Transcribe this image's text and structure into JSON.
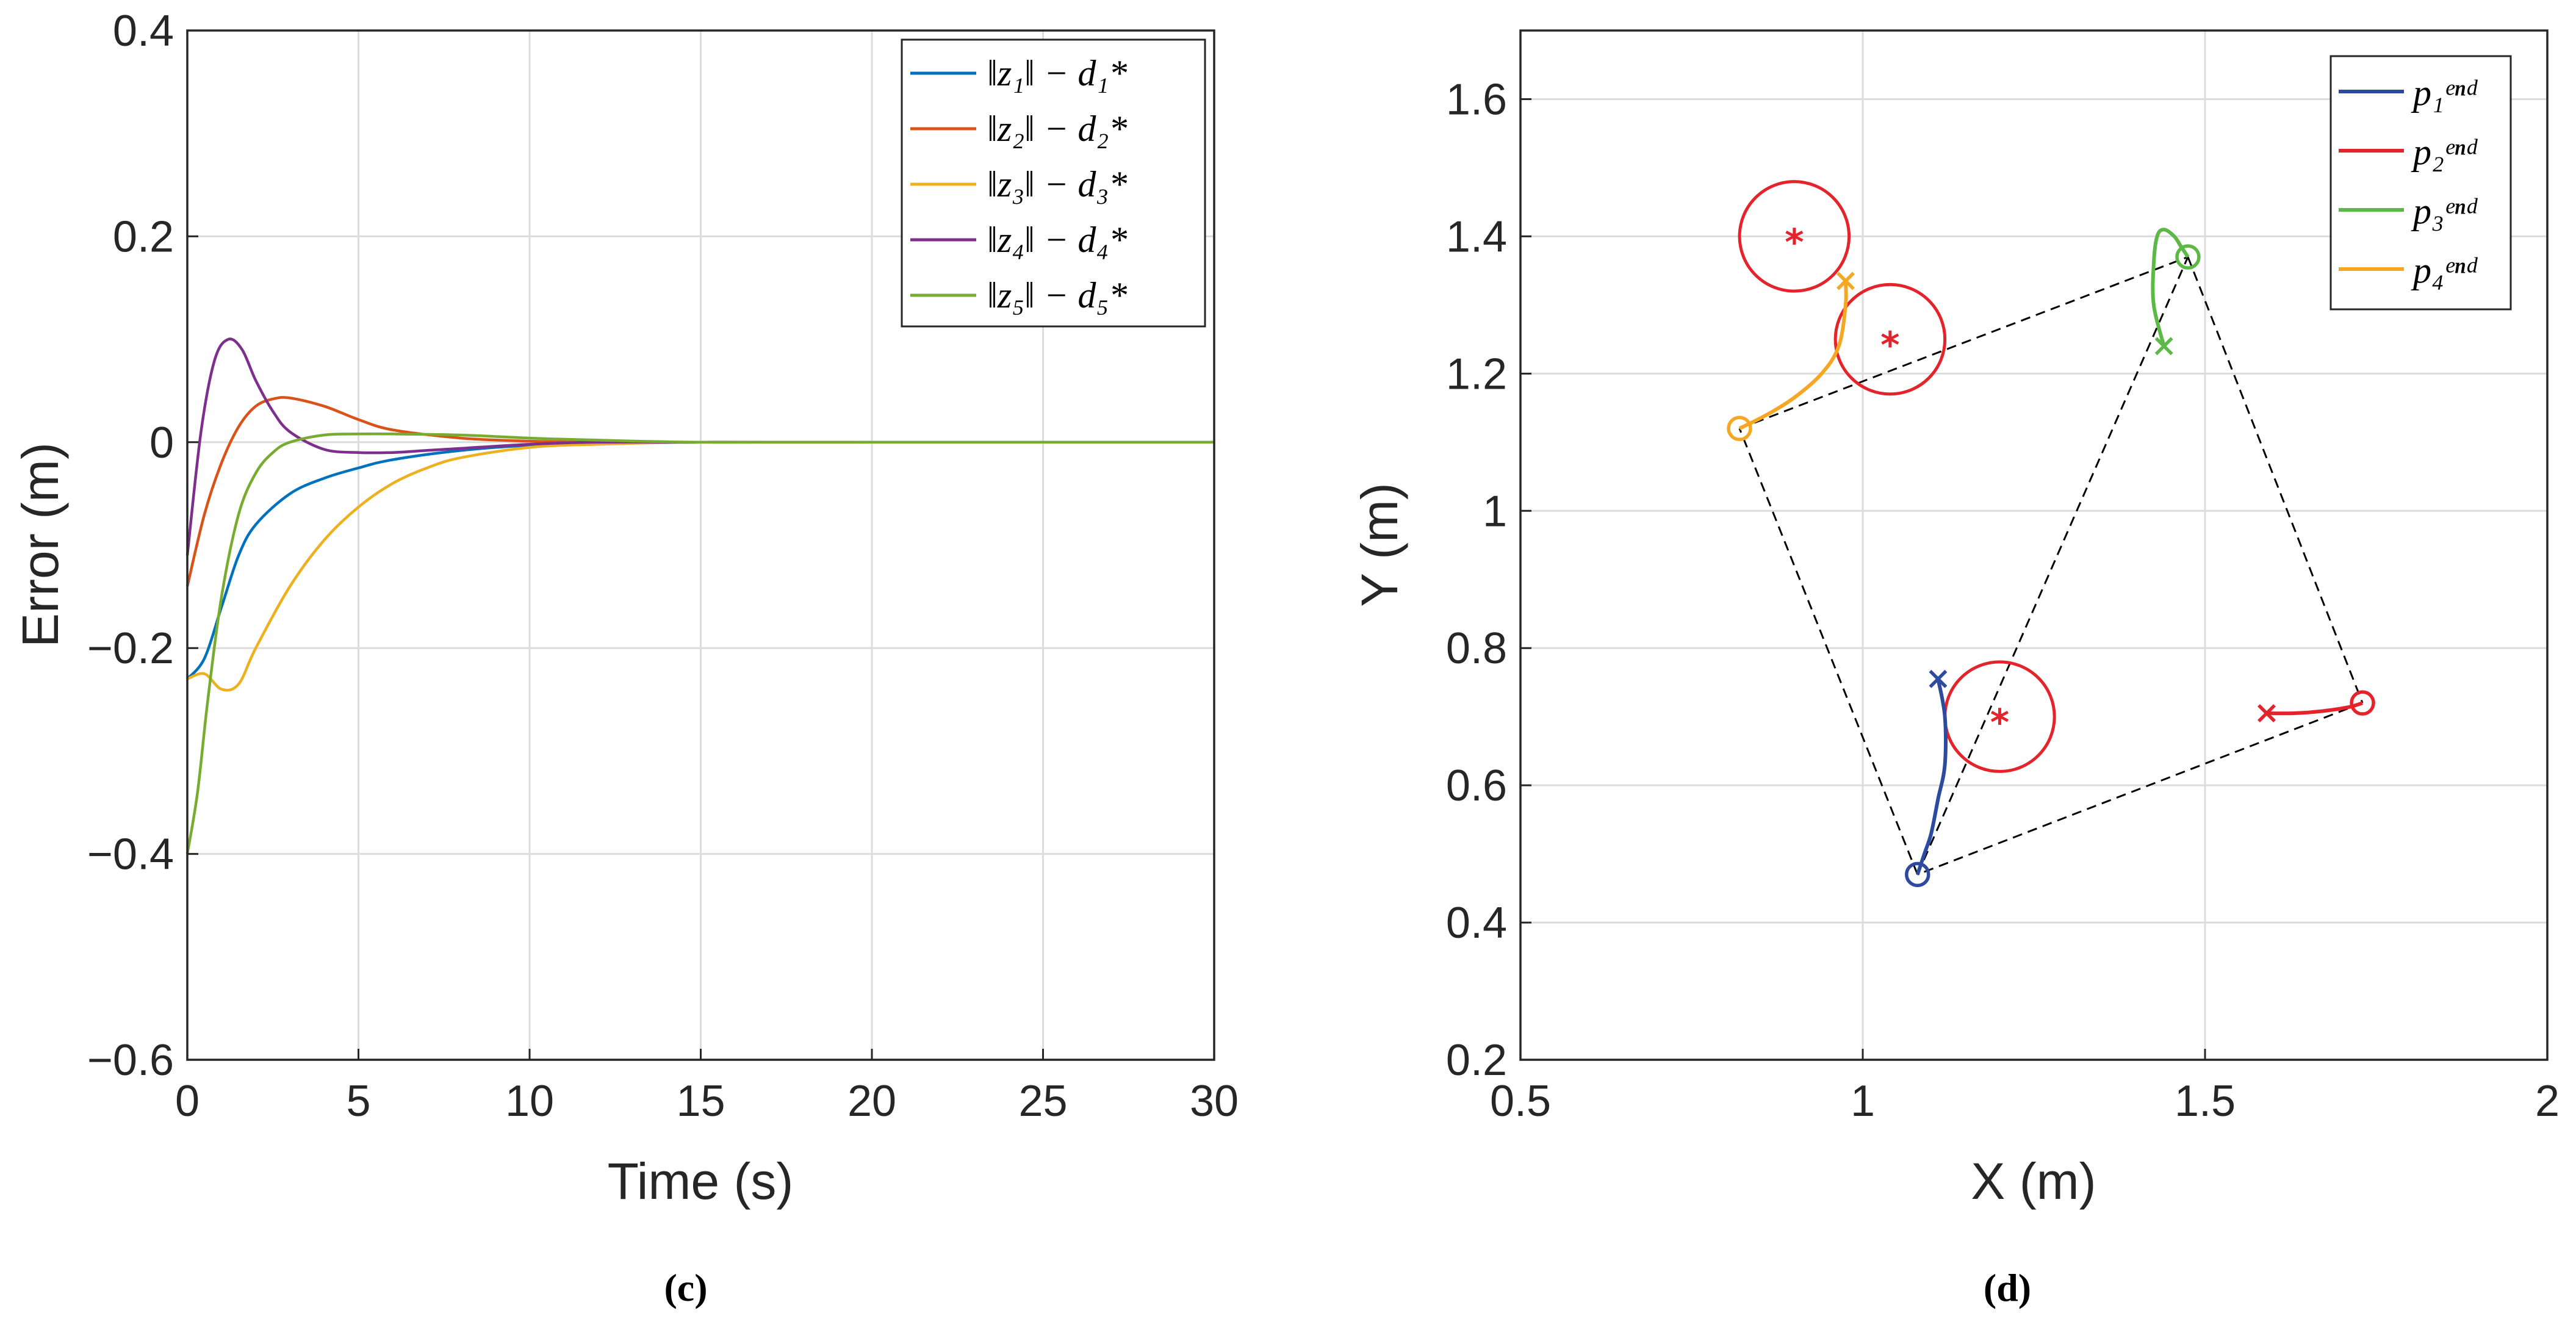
{
  "chart_data": [
    {
      "type": "line",
      "panel_label": "(c)",
      "xlabel": "Time (s)",
      "ylabel": "Error (m)",
      "xlim": [
        0,
        30
      ],
      "ylim": [
        -0.6,
        0.4
      ],
      "xticks": [
        "0",
        "5",
        "10",
        "15",
        "20",
        "25",
        "30"
      ],
      "yticks": [
        "−0.6",
        "−0.4",
        "−0.2",
        "0",
        "0.2",
        "0.4"
      ],
      "grid": true,
      "legend_position": "top-right",
      "series": [
        {
          "name": "‖z₁‖ − d₁*",
          "color": "#0072BD",
          "x": [
            0,
            0.5,
            1,
            1.5,
            2,
            3,
            4,
            5,
            6,
            8,
            10,
            12,
            15,
            20,
            30
          ],
          "y": [
            -0.23,
            -0.21,
            -0.16,
            -0.11,
            -0.08,
            -0.05,
            -0.035,
            -0.025,
            -0.017,
            -0.008,
            -0.003,
            -0.001,
            0,
            0,
            0
          ]
        },
        {
          "name": "‖z₂‖ − d₂*",
          "color": "#D95319",
          "x": [
            0,
            0.5,
            1,
            1.5,
            2,
            2.5,
            3,
            4,
            5,
            6,
            8,
            10,
            12,
            15,
            20,
            30
          ],
          "y": [
            -0.14,
            -0.07,
            -0.02,
            0.015,
            0.035,
            0.042,
            0.043,
            0.035,
            0.022,
            0.012,
            0.004,
            0.001,
            0,
            0,
            0,
            0
          ]
        },
        {
          "name": "‖z₃‖ − d₃*",
          "color": "#EDB120",
          "x": [
            0,
            0.5,
            1,
            1.5,
            2,
            3,
            4,
            5,
            6,
            7,
            8,
            10,
            12,
            15,
            20,
            30
          ],
          "y": [
            -0.23,
            -0.225,
            -0.24,
            -0.235,
            -0.2,
            -0.14,
            -0.095,
            -0.063,
            -0.04,
            -0.025,
            -0.015,
            -0.005,
            -0.002,
            0,
            0,
            0
          ]
        },
        {
          "name": "‖z₄‖ − d₄*",
          "color": "#7E2F8E",
          "x": [
            0,
            0.4,
            0.8,
            1.2,
            1.6,
            2,
            2.5,
            3,
            4,
            5,
            6,
            7,
            8,
            10,
            12,
            15,
            20,
            30
          ],
          "y": [
            -0.11,
            0.01,
            0.08,
            0.1,
            0.09,
            0.06,
            0.03,
            0.01,
            -0.007,
            -0.01,
            -0.01,
            -0.008,
            -0.006,
            -0.002,
            0,
            0,
            0,
            0
          ]
        },
        {
          "name": "‖z₅‖ − d₅*",
          "color": "#77AC30",
          "x": [
            0,
            0.3,
            0.6,
            1,
            1.5,
            2,
            2.5,
            3,
            4,
            5,
            6,
            8,
            10,
            12,
            15,
            20,
            30
          ],
          "y": [
            -0.4,
            -0.34,
            -0.25,
            -0.15,
            -0.07,
            -0.03,
            -0.01,
            0.0,
            0.007,
            0.008,
            0.008,
            0.007,
            0.004,
            0.002,
            0,
            0,
            0
          ]
        }
      ]
    },
    {
      "type": "line",
      "panel_label": "(d)",
      "xlabel": "X (m)",
      "ylabel": "Y (m)",
      "xlim": [
        0.5,
        2
      ],
      "ylim": [
        0.2,
        1.7
      ],
      "xticks": [
        "0.5",
        "1",
        "1.5",
        "2"
      ],
      "yticks": [
        "0.2",
        "0.4",
        "0.6",
        "0.8",
        "1",
        "1.2",
        "1.4",
        "1.6"
      ],
      "grid": true,
      "legend_position": "top-right",
      "series": [
        {
          "name": "p₁ᵉⁿᵈ",
          "color": "#2E4A9E",
          "x": [
            1.11,
            1.12,
            1.12,
            1.11,
            1.1,
            1.09,
            1.08
          ],
          "y": [
            0.755,
            0.7,
            0.63,
            0.58,
            0.53,
            0.5,
            0.47
          ]
        },
        {
          "name": "p₂ᵉⁿᵈ",
          "color": "#E4232A",
          "x": [
            1.59,
            1.63,
            1.67,
            1.71,
            1.73
          ],
          "y": [
            0.705,
            0.705,
            0.708,
            0.714,
            0.72
          ]
        },
        {
          "name": "p₃ᵉⁿᵈ",
          "color": "#5CB946",
          "x": [
            1.44,
            1.425,
            1.425,
            1.43,
            1.44,
            1.455,
            1.465,
            1.475
          ],
          "y": [
            1.24,
            1.3,
            1.36,
            1.4,
            1.41,
            1.4,
            1.385,
            1.37
          ]
        },
        {
          "name": "p₄ᵉⁿᵈ",
          "color": "#F5A623",
          "x": [
            0.975,
            0.975,
            0.965,
            0.94,
            0.9,
            0.86,
            0.82
          ],
          "y": [
            1.335,
            1.3,
            1.24,
            1.2,
            1.165,
            1.14,
            1.12
          ]
        }
      ],
      "formation_edges": [
        [
          [
            0.82,
            1.12
          ],
          [
            1.475,
            1.37
          ]
        ],
        [
          [
            1.475,
            1.37
          ],
          [
            1.73,
            0.72
          ]
        ],
        [
          [
            1.73,
            0.72
          ],
          [
            1.08,
            0.47
          ]
        ],
        [
          [
            1.08,
            0.47
          ],
          [
            0.82,
            1.12
          ]
        ],
        [
          [
            1.08,
            0.47
          ],
          [
            1.475,
            1.37
          ]
        ]
      ],
      "obstacles": [
        {
          "x": 0.9,
          "y": 1.4,
          "r": 0.08
        },
        {
          "x": 1.04,
          "y": 1.25,
          "r": 0.08
        },
        {
          "x": 1.2,
          "y": 0.7,
          "r": 0.08
        }
      ]
    }
  ]
}
